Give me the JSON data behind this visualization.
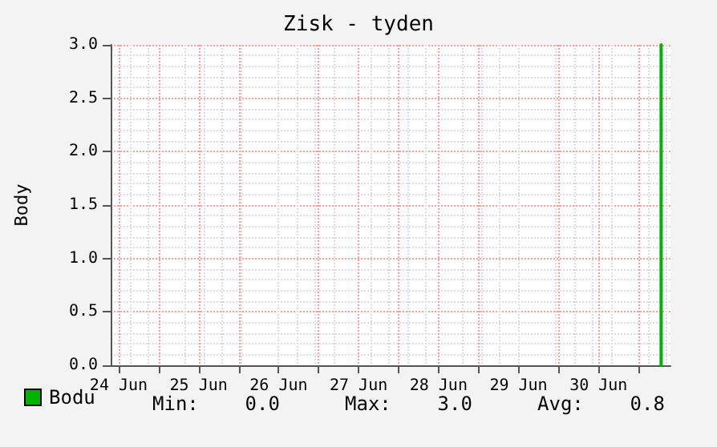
{
  "chart_data": {
    "type": "line",
    "title": "Zisk - tyden",
    "ylabel": "Body",
    "x": [
      "--07-01T06:48",
      "--07-01T06:48"
    ],
    "series": [
      {
        "name": "Bodu",
        "color": "#00b400",
        "values": [
          0,
          3
        ]
      }
    ],
    "xlim": [
      "--06-24T09:36",
      "--07-01T09:36"
    ],
    "xticks": [
      {
        "value": "--06-24T12:00",
        "label": "24 Jun"
      },
      {
        "value": "--06-25",
        "label": null
      },
      {
        "value": "--06-25T12:00",
        "label": "25 Jun"
      },
      {
        "value": "--06-26",
        "label": null
      },
      {
        "value": "--06-26T12:00",
        "label": "26 Jun"
      },
      {
        "value": "--06-27",
        "label": null
      },
      {
        "value": "--06-27T12:00",
        "label": "27 Jun"
      },
      {
        "value": "--06-28",
        "label": null
      },
      {
        "value": "--06-28T12:00",
        "label": "28 Jun"
      },
      {
        "value": "--06-29",
        "label": null
      },
      {
        "value": "--06-29T12:00",
        "label": "29 Jun"
      },
      {
        "value": "--06-30",
        "label": null
      },
      {
        "value": "--06-30T12:00",
        "label": "30 Jun"
      },
      {
        "value": "--07-01",
        "label": null
      }
    ],
    "ylim": [
      0,
      3
    ],
    "yticks": [
      {
        "value": 0,
        "label": "0.0"
      },
      {
        "value": 0.5,
        "label": "0.5"
      },
      {
        "value": 1,
        "label": "1.0"
      },
      {
        "value": 1.5,
        "label": "1.5"
      },
      {
        "value": 2,
        "label": "2.0"
      },
      {
        "value": 2.5,
        "label": "2.5"
      },
      {
        "value": 3,
        "label": "3.0"
      }
    ],
    "annotations": [
      "Min:    0.0",
      "Max:    3.0",
      "Avg:    0.8"
    ],
    "grid": true,
    "legend": "bottom left",
    "marker": "none",
    "line_style": "solid"
  }
}
